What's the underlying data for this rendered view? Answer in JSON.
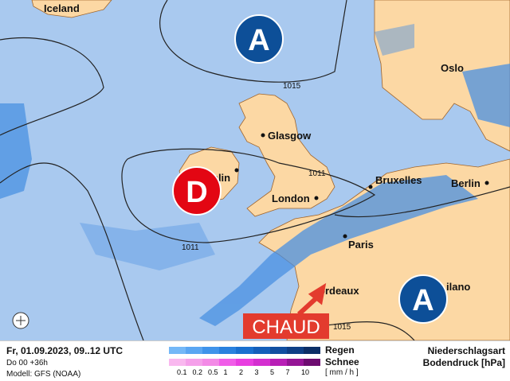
{
  "map": {
    "colors": {
      "sea": "#a9c9ef",
      "land": "#fcd8a4",
      "rain": "#4a90e2",
      "high": "#0d4f98",
      "low": "#e30613",
      "warm": "#e33b2e"
    },
    "cities": [
      "Iceland",
      "Oslo",
      "Glasgow",
      "Dublin",
      "London",
      "Berlin",
      "Bruxelles",
      "Paris",
      "Bordeaux",
      "Milano"
    ],
    "city_labels": {
      "iceland": "Iceland",
      "oslo": "Oslo",
      "glasgow": "Glasgow",
      "dublin": "blin",
      "london": "London",
      "berlin": "Berlin",
      "bruxelles": "Bruxelles",
      "paris": "Paris",
      "bordeaux": "ordeaux",
      "milano": "ilano"
    },
    "isobars": [
      "1015",
      "1011",
      "1011",
      "1015"
    ],
    "pressure_systems": {
      "high1": "A",
      "high2": "A",
      "low": "D"
    },
    "annotation": "CHAUD"
  },
  "footer": {
    "date": "Fr, 01.09.2023, 09..12 UTC",
    "run": "Do 00 +36h",
    "model": "Modell: GFS (NOAA)",
    "rain_label": "Regen",
    "snow_label": "Schnee",
    "unit": "[ mm / h ]",
    "ticks": [
      "0.1",
      "0.2",
      "0.5",
      "1",
      "2",
      "3",
      "5",
      "7",
      "10"
    ],
    "title1": "Niederschlagsart",
    "title2": "Bodendruck [hPa]",
    "rain_colors": [
      "#74b8f7",
      "#5aa6f2",
      "#3f93ea",
      "#2a81de",
      "#1a70cf",
      "#145fba",
      "#114fa1",
      "#0e3f86",
      "#0b2e66"
    ],
    "snow_colors": [
      "#f9b8ef",
      "#f5a0ea",
      "#f38ae6",
      "#f05de8",
      "#e83ee0",
      "#d42fd0",
      "#b81fb6",
      "#951596",
      "#6d0c70"
    ]
  }
}
